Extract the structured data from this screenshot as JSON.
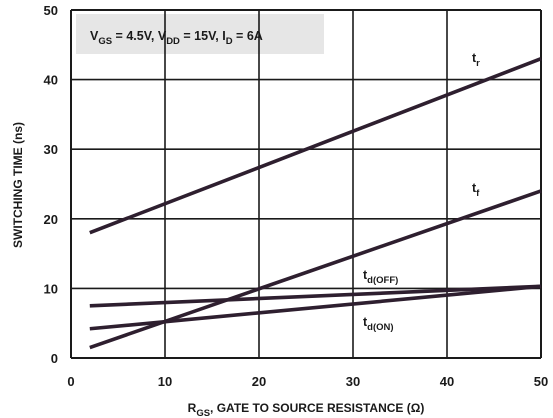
{
  "chart_data": {
    "type": "line",
    "xlabel": {
      "main": "R",
      "sub": "GS",
      "rest": ", GATE TO SOURCE RESISTANCE (Ω)"
    },
    "ylabel": "SWITCHING TIME (ns)",
    "xlim": [
      0,
      50
    ],
    "ylim": [
      0,
      50
    ],
    "x_ticks": [
      0,
      10,
      20,
      30,
      40,
      50
    ],
    "y_ticks": [
      0,
      10,
      20,
      30,
      40,
      50
    ],
    "grid": true,
    "conditions": [
      {
        "main": "V",
        "sub": "GS",
        "rest": " = 4.5V, "
      },
      {
        "main": "V",
        "sub": "DD",
        "rest": " = 15V,  "
      },
      {
        "main": "I",
        "sub": "D",
        "rest": " = 6A"
      }
    ],
    "series": [
      {
        "name": "r",
        "label_main": "t",
        "label_sub": "r",
        "x": [
          2,
          50
        ],
        "y": [
          18,
          43
        ]
      },
      {
        "name": "f",
        "label_main": "t",
        "label_sub": "f",
        "x": [
          2,
          50
        ],
        "y": [
          1.5,
          24
        ]
      },
      {
        "name": "d(OFF)",
        "label_main": "t",
        "label_sub": "d(OFF)",
        "x": [
          2,
          50
        ],
        "y": [
          7.5,
          10.3
        ]
      },
      {
        "name": "d(ON)",
        "label_main": "t",
        "label_sub": "d(ON)",
        "x": [
          2,
          50
        ],
        "y": [
          4.2,
          10.3
        ]
      }
    ],
    "line_color": "#2e1f2f",
    "grid_color": "#1a1a1a",
    "condition_box_color": "#e6e6e6"
  }
}
